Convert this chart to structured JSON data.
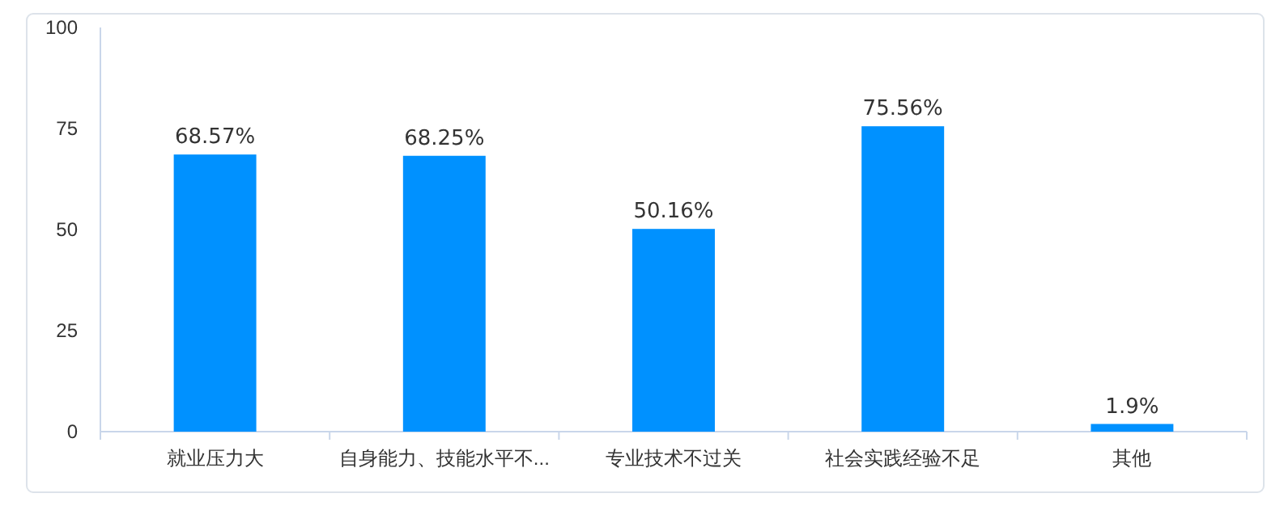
{
  "chart_data": {
    "type": "bar",
    "categories": [
      "就业压力大",
      "自身能力、技能水平不...",
      "专业技术不过关",
      "社会实践经验不足",
      "其他"
    ],
    "values": [
      68.57,
      68.25,
      50.16,
      75.56,
      1.9
    ],
    "value_labels": [
      "68.57%",
      "68.25%",
      "50.16%",
      "75.56%",
      "1.9%"
    ],
    "color": "#0091ff",
    "ylim": [
      0,
      100
    ],
    "yticks": [
      0,
      25,
      50,
      75,
      100
    ],
    "grid": false
  }
}
